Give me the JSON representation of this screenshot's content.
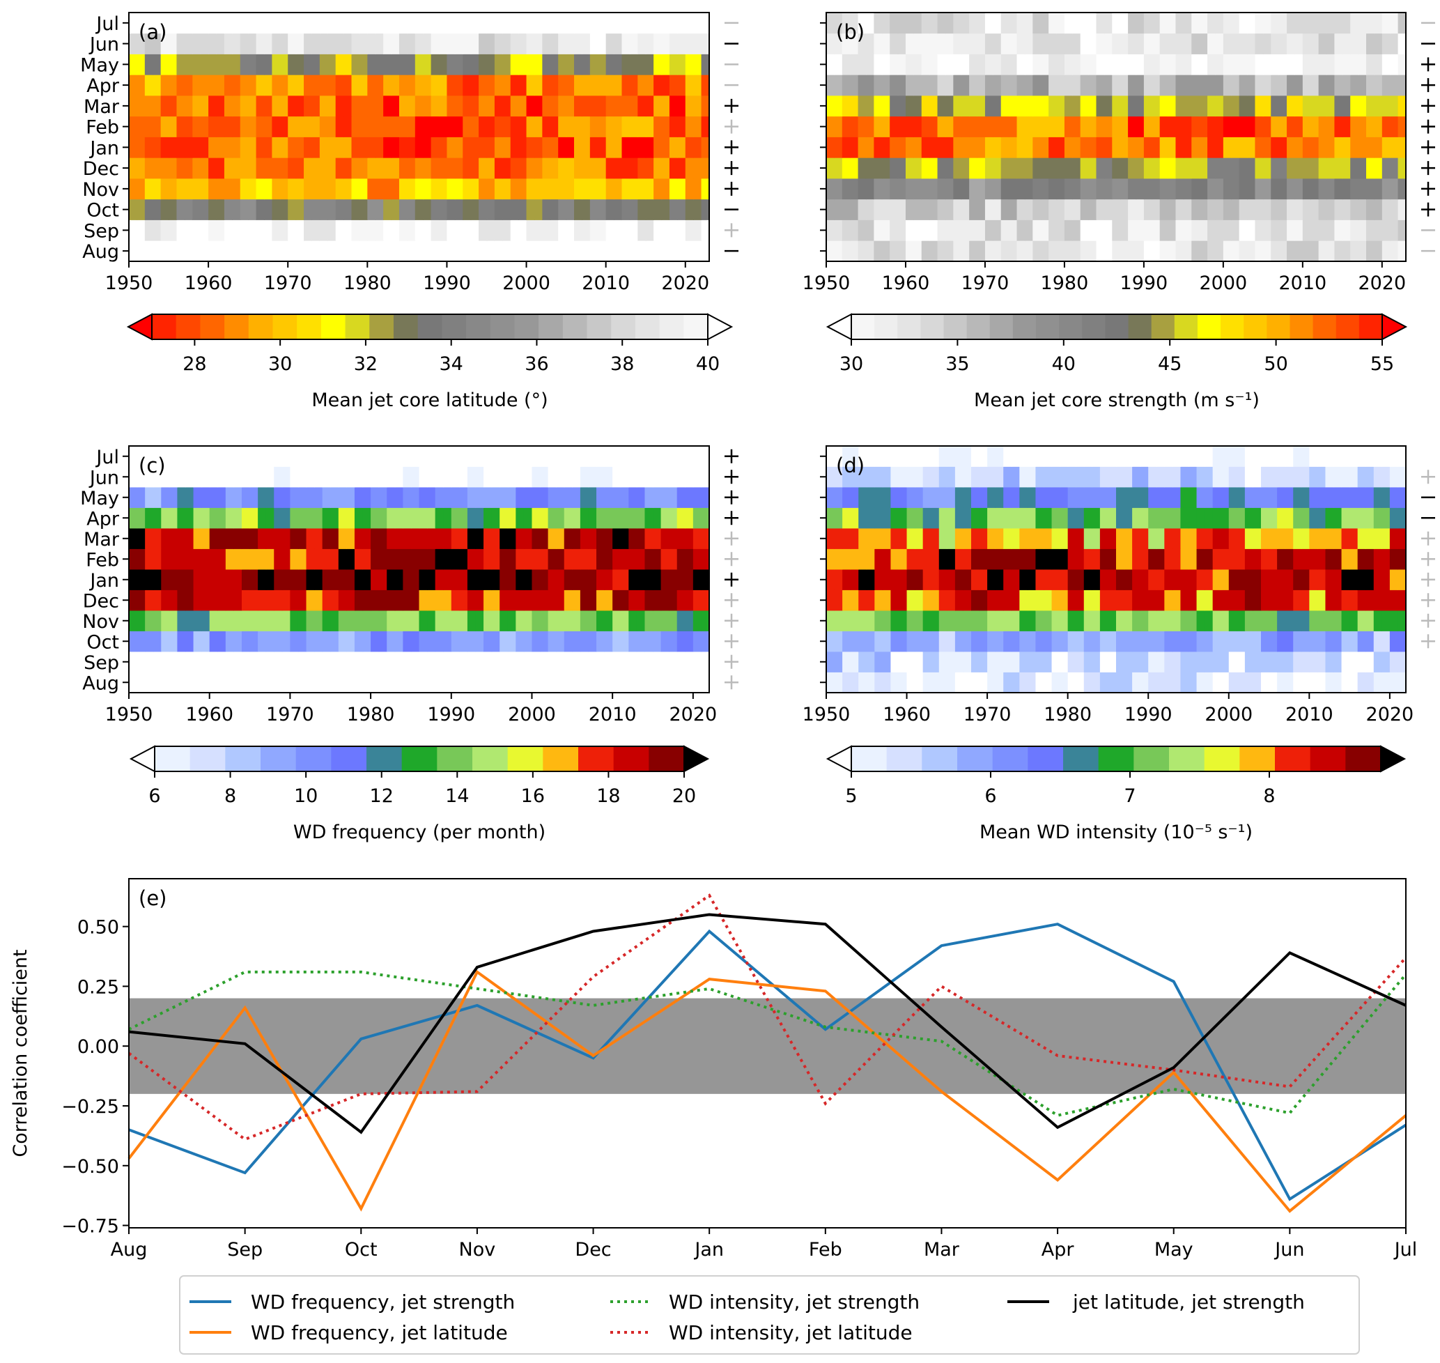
{
  "chart_data": [
    {
      "id": "a",
      "type": "heatmap",
      "panel_label": "(a)",
      "title": "",
      "xlabel": "",
      "ylabel": "",
      "x_range": [
        1950,
        2023
      ],
      "x_ticks": [
        "1950",
        "1960",
        "1970",
        "1980",
        "1990",
        "2000",
        "2010",
        "2020"
      ],
      "y_categories": [
        "Aug",
        "Sep",
        "Oct",
        "Nov",
        "Dec",
        "Jan",
        "Feb",
        "Mar",
        "Apr",
        "May",
        "Jun",
        "Jul"
      ],
      "significance": [
        {
          "month": "Jul",
          "sign": "-",
          "significant": false
        },
        {
          "month": "Jun",
          "sign": "-",
          "significant": true
        },
        {
          "month": "May",
          "sign": "-",
          "significant": false
        },
        {
          "month": "Apr",
          "sign": "-",
          "significant": false
        },
        {
          "month": "Mar",
          "sign": "+",
          "significant": true
        },
        {
          "month": "Feb",
          "sign": "+",
          "significant": false
        },
        {
          "month": "Jan",
          "sign": "+",
          "significant": true
        },
        {
          "month": "Dec",
          "sign": "+",
          "significant": true
        },
        {
          "month": "Nov",
          "sign": "+",
          "significant": true
        },
        {
          "month": "Oct",
          "sign": "-",
          "significant": true
        },
        {
          "month": "Sep",
          "sign": "+",
          "significant": false
        },
        {
          "month": "Aug",
          "sign": "-",
          "significant": true
        }
      ],
      "monthly_typical_values": {
        "Aug": 41,
        "Sep": 39.5,
        "Oct": 33.5,
        "Nov": 30,
        "Dec": 29,
        "Jan": 28.5,
        "Feb": 28.8,
        "Mar": 28.7,
        "Apr": 29.3,
        "May": 32.5,
        "Jun": 38.5,
        "Jul": 41
      },
      "colorbar": {
        "label": "Mean jet core latitude (°)",
        "ticks": [
          "28",
          "30",
          "32",
          "34",
          "36",
          "38",
          "40"
        ],
        "range": [
          27,
          40
        ],
        "extend": "both",
        "colormap": "hot-to-grey"
      }
    },
    {
      "id": "b",
      "type": "heatmap",
      "panel_label": "(b)",
      "x_range": [
        1950,
        2023
      ],
      "x_ticks": [
        "1950",
        "1960",
        "1970",
        "1980",
        "1990",
        "2000",
        "2010",
        "2020"
      ],
      "y_categories": [
        "Aug",
        "Sep",
        "Oct",
        "Nov",
        "Dec",
        "Jan",
        "Feb",
        "Mar",
        "Apr",
        "May",
        "Jun",
        "Jul"
      ],
      "significance": [
        {
          "month": "Jul",
          "sign": "-",
          "significant": false
        },
        {
          "month": "Jun",
          "sign": "-",
          "significant": true
        },
        {
          "month": "May",
          "sign": "+",
          "significant": true
        },
        {
          "month": "Apr",
          "sign": "+",
          "significant": true
        },
        {
          "month": "Mar",
          "sign": "+",
          "significant": true
        },
        {
          "month": "Feb",
          "sign": "+",
          "significant": true
        },
        {
          "month": "Jan",
          "sign": "+",
          "significant": true
        },
        {
          "month": "Dec",
          "sign": "+",
          "significant": true
        },
        {
          "month": "Nov",
          "sign": "+",
          "significant": true
        },
        {
          "month": "Oct",
          "sign": "+",
          "significant": true
        },
        {
          "month": "Sep",
          "sign": "-",
          "significant": false
        },
        {
          "month": "Aug",
          "sign": "-",
          "significant": false
        }
      ],
      "monthly_typical_values": {
        "Aug": 33,
        "Sep": 33,
        "Oct": 35,
        "Nov": 40,
        "Dec": 44,
        "Jan": 51,
        "Feb": 51.5,
        "Mar": 45,
        "Apr": 37,
        "May": 31,
        "Jun": 33,
        "Jul": 33
      },
      "colorbar": {
        "label": "Mean jet core strength (m s⁻¹)",
        "ticks": [
          "30",
          "35",
          "40",
          "45",
          "50",
          "55"
        ],
        "range": [
          30,
          55
        ],
        "extend": "both",
        "colormap": "grey-to-hot"
      }
    },
    {
      "id": "c",
      "type": "heatmap",
      "panel_label": "(c)",
      "x_range": [
        1950,
        2022
      ],
      "x_ticks": [
        "1950",
        "1960",
        "1970",
        "1980",
        "1990",
        "2000",
        "2010",
        "2020"
      ],
      "y_categories": [
        "Aug",
        "Sep",
        "Oct",
        "Nov",
        "Dec",
        "Jan",
        "Feb",
        "Mar",
        "Apr",
        "May",
        "Jun",
        "Jul"
      ],
      "significance": [
        {
          "month": "Jul",
          "sign": "+",
          "significant": true
        },
        {
          "month": "Jun",
          "sign": "+",
          "significant": true
        },
        {
          "month": "May",
          "sign": "+",
          "significant": true
        },
        {
          "month": "Apr",
          "sign": "+",
          "significant": true
        },
        {
          "month": "Mar",
          "sign": "+",
          "significant": false
        },
        {
          "month": "Feb",
          "sign": "+",
          "significant": false
        },
        {
          "month": "Jan",
          "sign": "+",
          "significant": true
        },
        {
          "month": "Dec",
          "sign": "+",
          "significant": false
        },
        {
          "month": "Nov",
          "sign": "+",
          "significant": false
        },
        {
          "month": "Oct",
          "sign": "+",
          "significant": false
        },
        {
          "month": "Sep",
          "sign": "+",
          "significant": false
        },
        {
          "month": "Aug",
          "sign": "+",
          "significant": false
        }
      ],
      "monthly_typical_values": {
        "Aug": 5,
        "Sep": 5,
        "Oct": 10,
        "Nov": 13.5,
        "Dec": 17.5,
        "Jan": 19,
        "Feb": 18,
        "Mar": 18,
        "Apr": 14,
        "May": 10.5,
        "Jun": 6,
        "Jul": 5
      },
      "colorbar": {
        "label": "WD frequency (per month)",
        "ticks": [
          "6",
          "8",
          "10",
          "12",
          "14",
          "16",
          "18",
          "20"
        ],
        "range": [
          6,
          20
        ],
        "extend": "both",
        "colormap": "white-blue-green-yellow-red-black"
      }
    },
    {
      "id": "d",
      "type": "heatmap",
      "panel_label": "(d)",
      "x_range": [
        1950,
        2022
      ],
      "x_ticks": [
        "1950",
        "1960",
        "1970",
        "1980",
        "1990",
        "2000",
        "2010",
        "2020"
      ],
      "y_categories": [
        "Aug",
        "Sep",
        "Oct",
        "Nov",
        "Dec",
        "Jan",
        "Feb",
        "Mar",
        "Apr",
        "May",
        "Jun",
        "Jul"
      ],
      "significance": [
        {
          "month": "Jun",
          "sign": "+",
          "significant": false
        },
        {
          "month": "May",
          "sign": "-",
          "significant": true
        },
        {
          "month": "Apr",
          "sign": "-",
          "significant": true
        },
        {
          "month": "Mar",
          "sign": "+",
          "significant": false
        },
        {
          "month": "Feb",
          "sign": "+",
          "significant": false
        },
        {
          "month": "Jan",
          "sign": "+",
          "significant": false
        },
        {
          "month": "Dec",
          "sign": "+",
          "significant": false
        },
        {
          "month": "Nov",
          "sign": "+",
          "significant": false
        },
        {
          "month": "Oct",
          "sign": "+",
          "significant": false
        }
      ],
      "monthly_typical_values": {
        "Aug": 5.4,
        "Sep": 5.5,
        "Oct": 6.0,
        "Nov": 7.0,
        "Dec": 8.0,
        "Jan": 8.3,
        "Feb": 8.2,
        "Mar": 7.8,
        "Apr": 7.1,
        "May": 6.4,
        "Jun": 5.6,
        "Jul": 5.0
      },
      "colorbar": {
        "label": "Mean WD intensity (10⁻⁵ s⁻¹)",
        "ticks": [
          "5",
          "6",
          "7",
          "8"
        ],
        "range": [
          5,
          8.8
        ],
        "extend": "both",
        "colormap": "white-blue-green-yellow-red-black"
      }
    },
    {
      "id": "e",
      "type": "line",
      "panel_label": "(e)",
      "title": "",
      "xlabel": "",
      "ylabel": "Correlation coefficient",
      "categories": [
        "Aug",
        "Sep",
        "Oct",
        "Nov",
        "Dec",
        "Jan",
        "Feb",
        "Mar",
        "Apr",
        "May",
        "Jun",
        "Jul"
      ],
      "ylim": [
        -0.76,
        0.7
      ],
      "yticks": [
        "-0.75",
        "-0.50",
        "-0.25",
        "0.00",
        "0.25",
        "0.50"
      ],
      "shaded_band": [
        -0.2,
        0.2
      ],
      "series": [
        {
          "name": "WD frequency, jet strength",
          "color": "#1f77b4",
          "style": "solid",
          "values": [
            -0.35,
            -0.53,
            0.03,
            0.17,
            -0.05,
            0.48,
            0.07,
            0.42,
            0.51,
            0.27,
            -0.64,
            -0.33
          ]
        },
        {
          "name": "WD frequency, jet latitude",
          "color": "#ff7f0e",
          "style": "solid",
          "values": [
            -0.47,
            0.16,
            -0.68,
            0.31,
            -0.04,
            0.28,
            0.23,
            -0.19,
            -0.56,
            -0.11,
            -0.69,
            -0.29
          ]
        },
        {
          "name": "WD intensity, jet strength",
          "color": "#2ca02c",
          "style": "dotted",
          "values": [
            0.07,
            0.31,
            0.31,
            0.24,
            0.17,
            0.24,
            0.08,
            0.02,
            -0.29,
            -0.18,
            -0.28,
            0.3
          ]
        },
        {
          "name": "WD intensity, jet latitude",
          "color": "#d62728",
          "style": "dotted",
          "values": [
            -0.03,
            -0.39,
            -0.2,
            -0.19,
            0.29,
            0.63,
            -0.24,
            0.25,
            -0.04,
            -0.1,
            -0.17,
            0.37
          ]
        },
        {
          "name": "jet latitude, jet strength",
          "color": "#000000",
          "style": "solid",
          "values": [
            0.06,
            0.01,
            -0.36,
            0.33,
            0.48,
            0.55,
            0.51,
            0.08,
            -0.34,
            -0.09,
            0.39,
            0.17
          ]
        }
      ],
      "legend": {
        "placement": "bottom-center",
        "columns": 3
      }
    }
  ]
}
